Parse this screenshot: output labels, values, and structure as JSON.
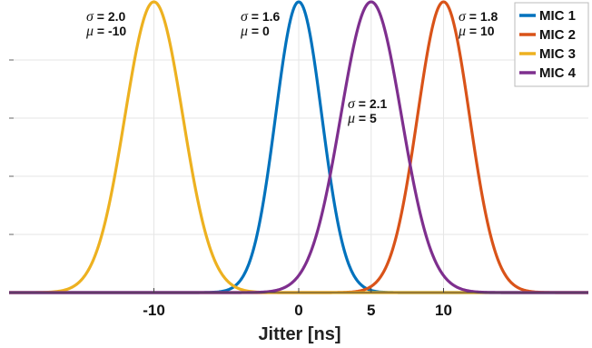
{
  "chart_data": {
    "type": "line",
    "xlabel": "Jitter [ns]",
    "ylabel": "",
    "xlim": [
      -20,
      20
    ],
    "xticks": [
      -10,
      0,
      5,
      10
    ],
    "xtick_labels": [
      "-10",
      "0",
      "5",
      "10"
    ],
    "grid": true,
    "legend_position": "top-right",
    "series": [
      {
        "name": "MIC 1",
        "mu": 0,
        "sigma": 1.6,
        "color": "#0072BD"
      },
      {
        "name": "MIC 2",
        "mu": 10,
        "sigma": 1.8,
        "color": "#D95319"
      },
      {
        "name": "MIC 3",
        "mu": -10,
        "sigma": 2.0,
        "color": "#EDB120"
      },
      {
        "name": "MIC 4",
        "mu": 5,
        "sigma": 2.1,
        "color": "#7E2F8E"
      }
    ],
    "annotations": [
      {
        "sigma_text": "σ = 2.0",
        "mu_text": "μ = -10",
        "sigma_sym": "σ",
        "sigma_rest": " = 2.0",
        "mu_sym": "μ",
        "mu_rest": " = -10"
      },
      {
        "sigma_text": "σ = 1.6",
        "mu_text": "μ = 0",
        "sigma_sym": "σ",
        "sigma_rest": " = 1.6",
        "mu_sym": "μ",
        "mu_rest": " = 0"
      },
      {
        "sigma_text": "σ = 2.1",
        "mu_text": "μ = 5",
        "sigma_sym": "σ",
        "sigma_rest": " = 2.1",
        "mu_sym": "μ",
        "mu_rest": " = 5"
      },
      {
        "sigma_text": "σ = 1.8",
        "mu_text": "μ = 10",
        "sigma_sym": "σ",
        "sigma_rest": " = 1.8",
        "mu_sym": "μ",
        "mu_rest": " = 10"
      }
    ]
  }
}
